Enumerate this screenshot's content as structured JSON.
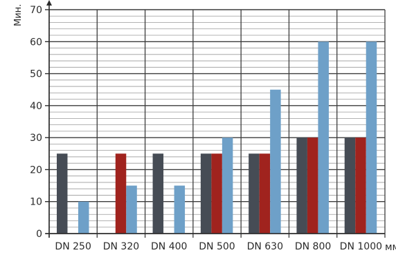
{
  "chart_data": {
    "type": "bar",
    "ylabel": "Мин.",
    "xunit": "мм",
    "categories": [
      "DN 250",
      "DN 320",
      "DN 400",
      "DN 500",
      "DN 630",
      "DN 800",
      "DN 1000"
    ],
    "ylim": [
      0,
      70
    ],
    "yticks": [
      0,
      10,
      20,
      30,
      40,
      50,
      60,
      70
    ],
    "grid": true,
    "series": [
      {
        "color": "#464c55",
        "values": [
          25,
          0,
          25,
          25,
          25,
          30,
          30
        ]
      },
      {
        "color": "#a0231e",
        "values": [
          0,
          25,
          0,
          25,
          25,
          30,
          30
        ]
      },
      {
        "color": "#6ea0c8",
        "values": [
          10,
          15,
          15,
          30,
          45,
          60,
          60
        ]
      }
    ]
  }
}
